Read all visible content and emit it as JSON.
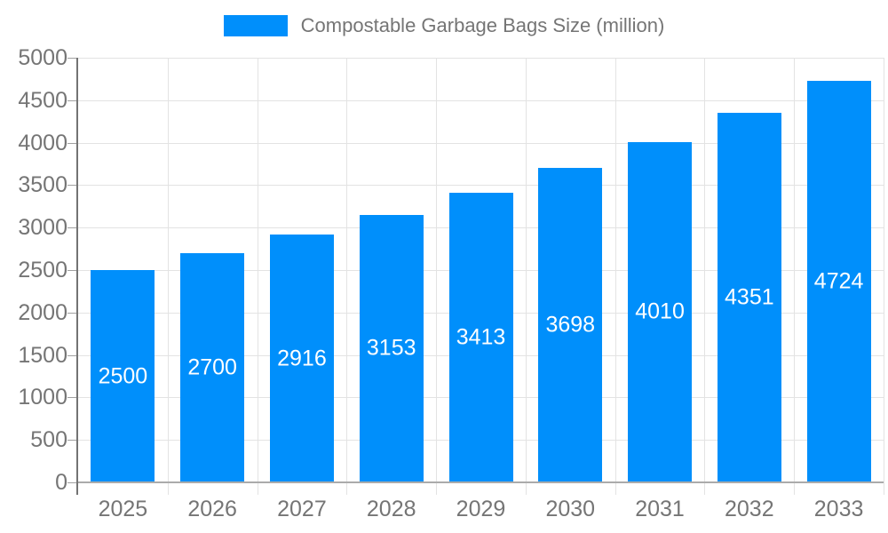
{
  "chart_data": {
    "type": "bar",
    "title": "Compostable Garbage Bags Size (million)",
    "legend_label": "Compostable Garbage Bags Size (million)",
    "categories": [
      "2025",
      "2026",
      "2027",
      "2028",
      "2029",
      "2030",
      "2031",
      "2032",
      "2033"
    ],
    "series": [
      {
        "name": "Compostable Garbage Bags Size (million)",
        "values": [
          2500,
          2700,
          2916,
          3153,
          3413,
          3698,
          4010,
          4351,
          4724
        ]
      }
    ],
    "value_labels": [
      "2500",
      "2700",
      "2916",
      "3153",
      "3413",
      "3698",
      "4010",
      "4351",
      "4724"
    ],
    "xlabel": "",
    "ylabel": "",
    "ylim": [
      0,
      5000
    ],
    "ytick_step": 500,
    "yticks": [
      0,
      500,
      1000,
      1500,
      2000,
      2500,
      3000,
      3500,
      4000,
      4500,
      5000
    ],
    "grid": true,
    "legend_position": "top",
    "colors": {
      "bar": "#008FFB",
      "value_label": "#ffffff",
      "axis_label": "#757575",
      "grid_line": "#e3e3e3",
      "y_axis_line": "#737373",
      "baseline": "#ababab"
    }
  }
}
